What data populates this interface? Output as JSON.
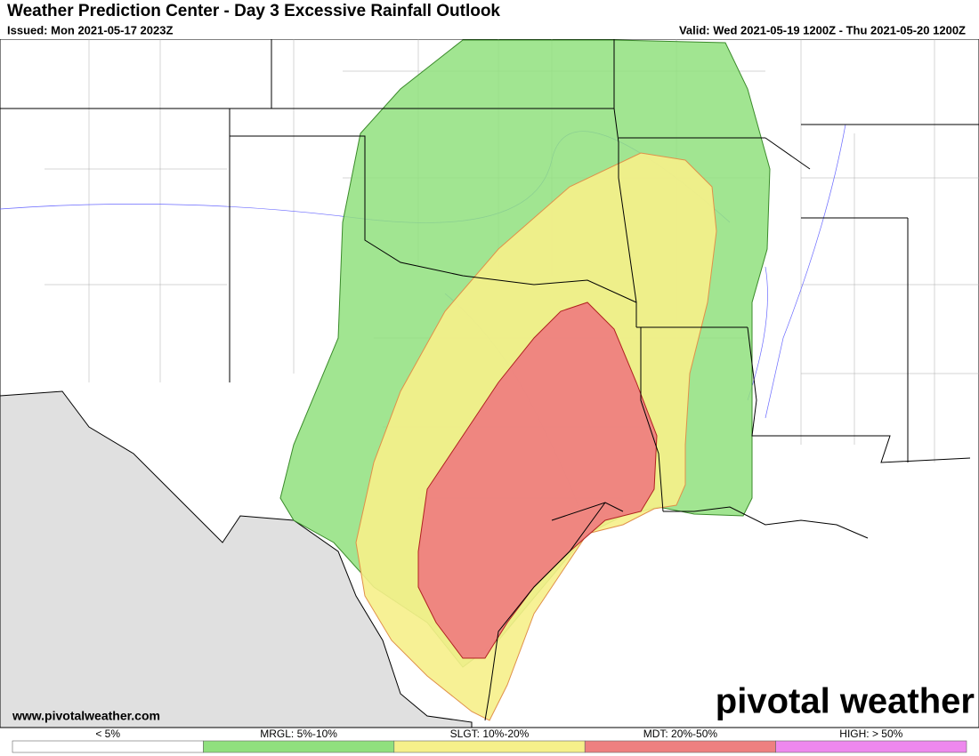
{
  "header": {
    "title": "Weather Prediction Center - Day 3 Excessive Rainfall Outlook",
    "issued": "Issued: Mon 2021-05-17 2023Z",
    "valid": "Valid: Wed 2021-05-19 1200Z - Thu 2021-05-20 1200Z"
  },
  "footer": {
    "website": "www.pivotalweather.com",
    "logo": "pivotal weather"
  },
  "legend": [
    {
      "label": "< 5%",
      "color": "#ffffff"
    },
    {
      "label": "MRGL: 5%-10%",
      "color": "#90e07e"
    },
    {
      "label": "SLGT: 10%-20%",
      "color": "#f6f08a"
    },
    {
      "label": "MDT: 20%-50%",
      "color": "#ee8080"
    },
    {
      "label": "HIGH: > 50%",
      "color": "#ee88ee"
    }
  ]
}
